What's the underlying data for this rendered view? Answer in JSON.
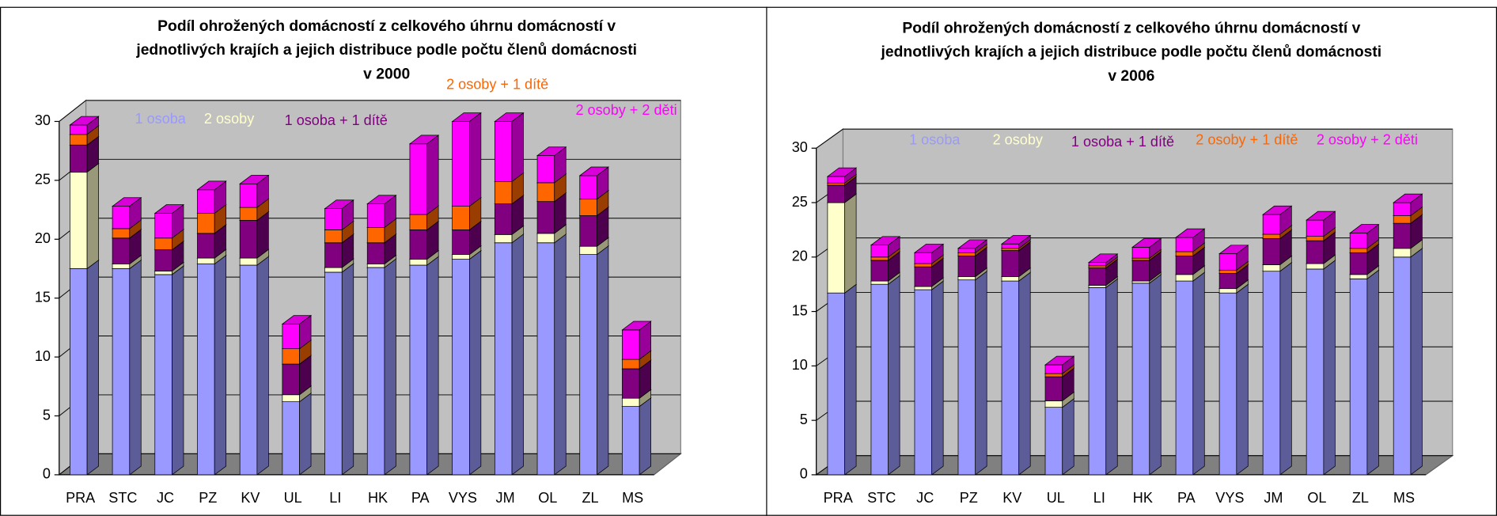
{
  "chart_data": [
    {
      "type": "bar",
      "stacked": true,
      "title": [
        "Podíl ohrožených domácností z celkového úhrnu domácností v",
        "jednotlivých krajích a jejich distribuce podle počtu členů domácnosti",
        "v 2000"
      ],
      "categories": [
        "PRA",
        "STC",
        "JC",
        "PZ",
        "KV",
        "UL",
        "LI",
        "HK",
        "PA",
        "VYS",
        "JM",
        "OL",
        "ZL",
        "MS"
      ],
      "series": [
        {
          "name": "1 osoba",
          "color": "#9999ff",
          "values": [
            17.5,
            17.5,
            17.0,
            17.9,
            17.8,
            6.2,
            17.2,
            17.6,
            17.8,
            18.3,
            19.7,
            19.7,
            18.7,
            5.8
          ]
        },
        {
          "name": "2 osoby",
          "color": "#ffffcc",
          "values": [
            8.2,
            0.4,
            0.3,
            0.5,
            0.6,
            0.6,
            0.4,
            0.3,
            0.5,
            0.4,
            0.7,
            0.8,
            0.7,
            0.7
          ]
        },
        {
          "name": "1 osoba + 1 dítě",
          "color": "#800080",
          "values": [
            2.3,
            2.2,
            1.8,
            2.1,
            3.2,
            2.6,
            2.1,
            1.8,
            2.5,
            2.1,
            2.6,
            2.7,
            2.6,
            2.5
          ]
        },
        {
          "name": "2 osoby + 1 dítě",
          "color": "#ff6600",
          "values": [
            0.9,
            0.8,
            1.0,
            1.7,
            1.1,
            1.3,
            1.1,
            1.3,
            1.3,
            2.0,
            1.9,
            1.6,
            1.4,
            0.8
          ]
        },
        {
          "name": "2 osoby + 2 děti",
          "color": "#ff00ff",
          "values": [
            0.8,
            1.9,
            2.1,
            2.0,
            2.0,
            2.1,
            1.8,
            2.0,
            6.0,
            7.2,
            5.1,
            2.3,
            2.0,
            2.5
          ]
        }
      ],
      "ylim": [
        0,
        30
      ],
      "yticks": [
        0,
        5,
        10,
        15,
        20,
        25,
        30
      ],
      "grid": true
    },
    {
      "type": "bar",
      "stacked": true,
      "title": [
        "Podíl ohrožených domácností z celkového úhrnu domácností v",
        "jednotlivých krajích a jejich distribuce podle počtu členů domácnosti",
        "v 2006"
      ],
      "categories": [
        "PRA",
        "STC",
        "JC",
        "PZ",
        "KV",
        "UL",
        "LI",
        "HK",
        "PA",
        "VYS",
        "JM",
        "OL",
        "ZL",
        "MS"
      ],
      "series": [
        {
          "name": "1 osoba",
          "color": "#9999ff",
          "values": [
            16.7,
            17.5,
            17.0,
            17.9,
            17.8,
            6.2,
            17.2,
            17.6,
            17.8,
            16.7,
            18.7,
            18.9,
            18.0,
            20.0
          ]
        },
        {
          "name": "2 osoby",
          "color": "#ffffcc",
          "values": [
            8.3,
            0.3,
            0.3,
            0.3,
            0.4,
            0.6,
            0.2,
            0.2,
            0.6,
            0.4,
            0.6,
            0.5,
            0.4,
            0.8
          ]
        },
        {
          "name": "1 osoba + 1 dítě",
          "color": "#800080",
          "values": [
            1.6,
            1.9,
            1.8,
            1.9,
            2.4,
            2.2,
            1.6,
            1.9,
            1.7,
            1.4,
            2.4,
            2.1,
            2.0,
            2.3
          ]
        },
        {
          "name": "2 osoby + 1 dítě",
          "color": "#ff6600",
          "values": [
            0.2,
            0.3,
            0.3,
            0.3,
            0.2,
            0.3,
            0.2,
            0.2,
            0.4,
            0.3,
            0.4,
            0.4,
            0.4,
            0.7
          ]
        },
        {
          "name": "2 osoby + 2 děti",
          "color": "#ff00ff",
          "values": [
            0.6,
            1.1,
            1.0,
            0.4,
            0.4,
            0.8,
            0.3,
            1.0,
            1.3,
            1.5,
            1.8,
            1.5,
            1.4,
            1.2
          ]
        }
      ],
      "ylim": [
        0,
        30
      ],
      "yticks": [
        0,
        5,
        10,
        15,
        20,
        25,
        30
      ],
      "grid": true
    }
  ]
}
